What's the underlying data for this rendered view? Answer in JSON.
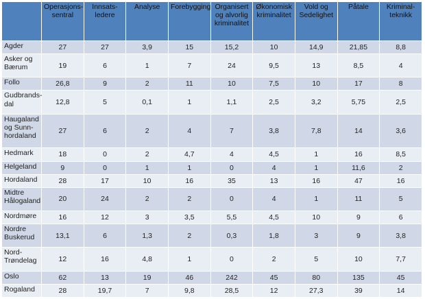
{
  "header": {
    "columns": [
      "Operasjons-sentral",
      "Innsats-ledere",
      "Analyse",
      "Forebygging",
      "Organisert og alvorlig kriminalitet",
      "Økonomisk kriminalitet",
      "Vold og Sedelighet",
      "Påtale",
      "Kriminal-teknikk"
    ]
  },
  "rows": [
    {
      "name": "Agder",
      "values": [
        "27",
        "27",
        "3,9",
        "15",
        "15,2",
        "10",
        "14,9",
        "21,85",
        "8,8"
      ]
    },
    {
      "name": "Asker og Bærum",
      "values": [
        "19",
        "6",
        "1",
        "7",
        "24",
        "9,5",
        "13",
        "8,5",
        "4"
      ]
    },
    {
      "name": "Follo",
      "values": [
        "26,8",
        "9",
        "2",
        "11",
        "10",
        "7,5",
        "10",
        "17",
        "8"
      ]
    },
    {
      "name": "Gudbrands-dal",
      "values": [
        "12,8",
        "5",
        "0,1",
        "1",
        "1,1",
        "2,5",
        "3,2",
        "5,75",
        "2,5"
      ]
    },
    {
      "name": "Haugaland og Sunn-hordaland",
      "values": [
        "27",
        "6",
        "2",
        "4",
        "7",
        "3,8",
        "7,8",
        "14",
        "3,6"
      ]
    },
    {
      "name": "Hedmark",
      "values": [
        "18",
        "0",
        "2",
        "4,7",
        "4",
        "4,5",
        "1",
        "16",
        "8,5"
      ]
    },
    {
      "name": "Helgeland",
      "values": [
        "9",
        "0",
        "1",
        "1",
        "0",
        "4",
        "1",
        "11,6",
        "2"
      ]
    },
    {
      "name": "Hordaland",
      "values": [
        "28",
        "17",
        "10",
        "16",
        "35",
        "13",
        "16",
        "47",
        "16"
      ]
    },
    {
      "name": "Midtre Hålogaland",
      "values": [
        "20",
        "24",
        "2",
        "2",
        "0",
        "4",
        "1",
        "11",
        "5"
      ]
    },
    {
      "name": "Nordmøre",
      "values": [
        "16",
        "12",
        "3",
        "3,5",
        "5,5",
        "4,5",
        "10",
        "9",
        "6"
      ]
    },
    {
      "name": "Nordre Buskerud",
      "values": [
        "13,1",
        "6",
        "1,3",
        "2",
        "0,3",
        "1,8",
        "3",
        "9",
        "3,8"
      ]
    },
    {
      "name": "Nord-Trøndelag",
      "values": [
        "12",
        "16",
        "4,8",
        "1",
        "0",
        "2",
        "5",
        "10",
        "7,7"
      ]
    },
    {
      "name": "Oslo",
      "values": [
        "62",
        "13",
        "19",
        "46",
        "242",
        "45",
        "80",
        "135",
        "45"
      ]
    },
    {
      "name": "Rogaland",
      "values": [
        "28",
        "19,7",
        "7",
        "9,8",
        "28,5",
        "12",
        "27,3",
        "39",
        "14"
      ]
    }
  ]
}
